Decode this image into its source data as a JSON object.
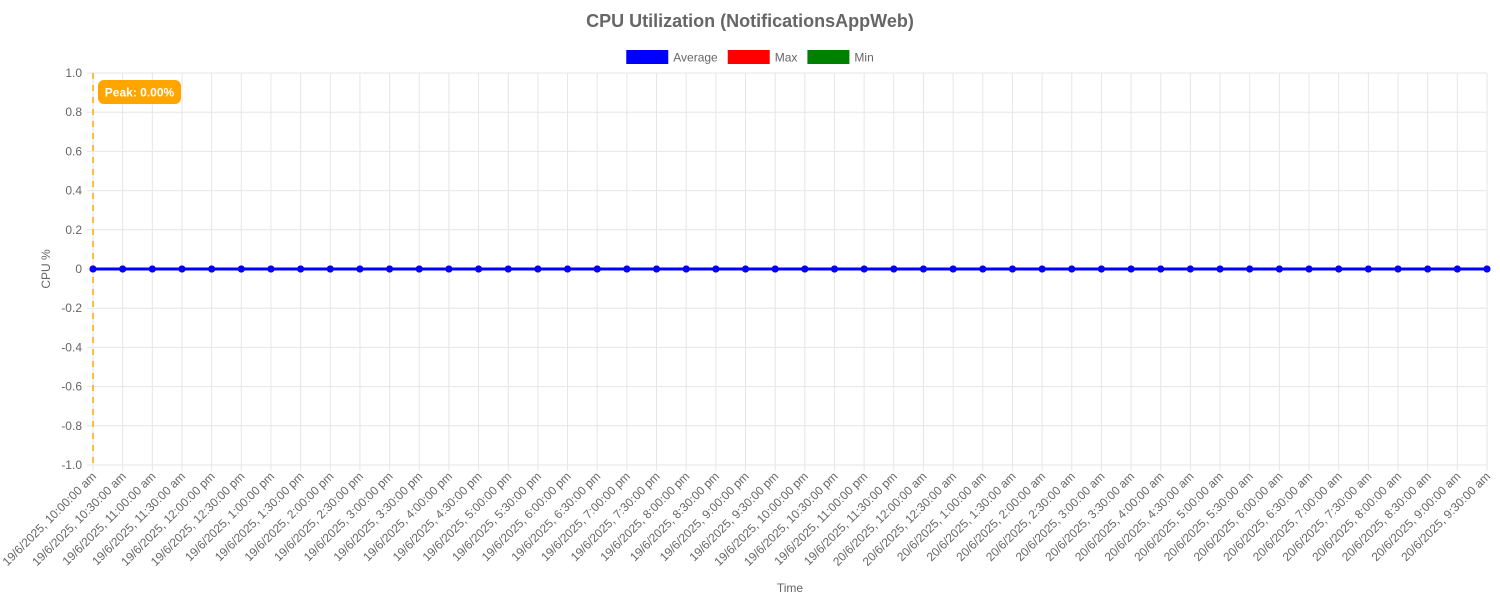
{
  "chart_data": {
    "type": "line",
    "title": "CPU Utilization (NotificationsAppWeb)",
    "xlabel": "Time",
    "ylabel": "CPU %",
    "ylim": [
      -1.0,
      1.0
    ],
    "yticks": [
      "1.0",
      "0.8",
      "0.6",
      "0.4",
      "0.2",
      "0",
      "-0.2",
      "-0.4",
      "-0.6",
      "-0.8",
      "-1.0"
    ],
    "grid": true,
    "legend_position": "top-center",
    "annotation": {
      "label": "Peak: 0.00%",
      "x_index": 0,
      "color": "#ffa500"
    },
    "x": [
      "19/6/2025, 10:00:00 am",
      "19/6/2025, 10:30:00 am",
      "19/6/2025, 11:00:00 am",
      "19/6/2025, 11:30:00 am",
      "19/6/2025, 12:00:00 pm",
      "19/6/2025, 12:30:00 pm",
      "19/6/2025, 1:00:00 pm",
      "19/6/2025, 1:30:00 pm",
      "19/6/2025, 2:00:00 pm",
      "19/6/2025, 2:30:00 pm",
      "19/6/2025, 3:00:00 pm",
      "19/6/2025, 3:30:00 pm",
      "19/6/2025, 4:00:00 pm",
      "19/6/2025, 4:30:00 pm",
      "19/6/2025, 5:00:00 pm",
      "19/6/2025, 5:30:00 pm",
      "19/6/2025, 6:00:00 pm",
      "19/6/2025, 6:30:00 pm",
      "19/6/2025, 7:00:00 pm",
      "19/6/2025, 7:30:00 pm",
      "19/6/2025, 8:00:00 pm",
      "19/6/2025, 8:30:00 pm",
      "19/6/2025, 9:00:00 pm",
      "19/6/2025, 9:30:00 pm",
      "19/6/2025, 10:00:00 pm",
      "19/6/2025, 10:30:00 pm",
      "19/6/2025, 11:00:00 pm",
      "19/6/2025, 11:30:00 pm",
      "20/6/2025, 12:00:00 am",
      "20/6/2025, 12:30:00 am",
      "20/6/2025, 1:00:00 am",
      "20/6/2025, 1:30:00 am",
      "20/6/2025, 2:00:00 am",
      "20/6/2025, 2:30:00 am",
      "20/6/2025, 3:00:00 am",
      "20/6/2025, 3:30:00 am",
      "20/6/2025, 4:00:00 am",
      "20/6/2025, 4:30:00 am",
      "20/6/2025, 5:00:00 am",
      "20/6/2025, 5:30:00 am",
      "20/6/2025, 6:00:00 am",
      "20/6/2025, 6:30:00 am",
      "20/6/2025, 7:00:00 am",
      "20/6/2025, 7:30:00 am",
      "20/6/2025, 8:00:00 am",
      "20/6/2025, 8:30:00 am",
      "20/6/2025, 9:00:00 am",
      "20/6/2025, 9:30:00 am"
    ],
    "series": [
      {
        "name": "Average",
        "color": "#0000ff",
        "values": [
          0,
          0,
          0,
          0,
          0,
          0,
          0,
          0,
          0,
          0,
          0,
          0,
          0,
          0,
          0,
          0,
          0,
          0,
          0,
          0,
          0,
          0,
          0,
          0,
          0,
          0,
          0,
          0,
          0,
          0,
          0,
          0,
          0,
          0,
          0,
          0,
          0,
          0,
          0,
          0,
          0,
          0,
          0,
          0,
          0,
          0,
          0,
          0
        ]
      },
      {
        "name": "Max",
        "color": "#ff0000",
        "values": [
          0,
          0,
          0,
          0,
          0,
          0,
          0,
          0,
          0,
          0,
          0,
          0,
          0,
          0,
          0,
          0,
          0,
          0,
          0,
          0,
          0,
          0,
          0,
          0,
          0,
          0,
          0,
          0,
          0,
          0,
          0,
          0,
          0,
          0,
          0,
          0,
          0,
          0,
          0,
          0,
          0,
          0,
          0,
          0,
          0,
          0,
          0,
          0
        ]
      },
      {
        "name": "Min",
        "color": "#008000",
        "values": [
          0,
          0,
          0,
          0,
          0,
          0,
          0,
          0,
          0,
          0,
          0,
          0,
          0,
          0,
          0,
          0,
          0,
          0,
          0,
          0,
          0,
          0,
          0,
          0,
          0,
          0,
          0,
          0,
          0,
          0,
          0,
          0,
          0,
          0,
          0,
          0,
          0,
          0,
          0,
          0,
          0,
          0,
          0,
          0,
          0,
          0,
          0,
          0
        ]
      }
    ]
  }
}
